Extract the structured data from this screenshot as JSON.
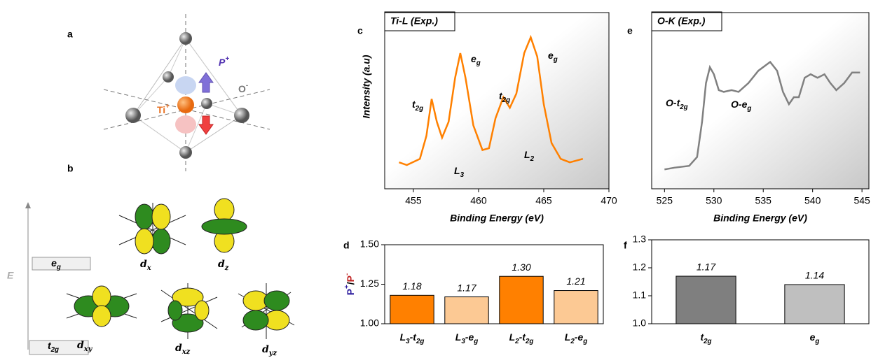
{
  "figure": {
    "panel_labels": [
      "a",
      "b",
      "c",
      "d",
      "e",
      "f"
    ],
    "polarization": "P+",
    "oxygen": "O-",
    "titanium": "Ti+",
    "energy_axis": "E",
    "eg_level": "eg",
    "t2g_level": "t2g",
    "orbitals": [
      "dx2-y2",
      "dz2",
      "dxy",
      "dxz",
      "dyz"
    ]
  },
  "chart_data": [
    {
      "type": "line",
      "box_label": "Ti-L (Exp.)",
      "xlabel": "Binding Energy (eV)",
      "ylabel": "Intensity (a.u)",
      "annotations": [
        "t2g",
        "eg",
        "t2g",
        "eg",
        "L3",
        "L2"
      ],
      "x": [
        453.9,
        454.5,
        455.5,
        456.0,
        456.4,
        456.8,
        457.2,
        457.7,
        458.2,
        458.6,
        459.0,
        459.6,
        460.3,
        460.8,
        461.3,
        461.9,
        462.4,
        462.9,
        463.5,
        464.0,
        464.5,
        465.0,
        465.6,
        466.3,
        467.0,
        468.0
      ],
      "series": [
        {
          "color": "#ff8000",
          "values": [
            0.15,
            0.135,
            0.17,
            0.3,
            0.51,
            0.38,
            0.29,
            0.38,
            0.63,
            0.77,
            0.63,
            0.36,
            0.22,
            0.23,
            0.4,
            0.52,
            0.46,
            0.54,
            0.77,
            0.86,
            0.75,
            0.48,
            0.26,
            0.17,
            0.15,
            0.17
          ]
        }
      ],
      "xlim": [
        452.8,
        470
      ],
      "xticks": [
        455,
        460,
        465,
        470
      ],
      "ylim": [
        0,
        1
      ]
    },
    {
      "type": "line",
      "box_label": "O-K (Exp.)",
      "xlabel": "Binding Energy (eV)",
      "annotations": [
        "O-t2g",
        "O-eg"
      ],
      "x": [
        525,
        526,
        527.5,
        528.3,
        528.8,
        529.2,
        529.6,
        530,
        530.5,
        531,
        531.8,
        532.5,
        533.5,
        534.5,
        535.7,
        536.4,
        537,
        537.6,
        538.1,
        538.6,
        539.2,
        539.8,
        540.5,
        541.2,
        541.8,
        542.4,
        543.2,
        544,
        544.8
      ],
      "series": [
        {
          "color": "#808080",
          "values": [
            0.11,
            0.12,
            0.13,
            0.18,
            0.38,
            0.6,
            0.69,
            0.65,
            0.56,
            0.55,
            0.56,
            0.55,
            0.6,
            0.67,
            0.72,
            0.67,
            0.55,
            0.48,
            0.52,
            0.52,
            0.63,
            0.65,
            0.63,
            0.65,
            0.6,
            0.56,
            0.6,
            0.66,
            0.66
          ]
        }
      ],
      "xlim": [
        523.7,
        545.7
      ],
      "xticks": [
        525,
        530,
        535,
        540,
        545
      ],
      "ylim": [
        0,
        1
      ]
    },
    {
      "type": "bar",
      "ylabel": "P+/P-",
      "categories": [
        "L3-t2g",
        "L3-eg",
        "L2-t2g",
        "L2-eg"
      ],
      "values": [
        1.18,
        1.17,
        1.3,
        1.21
      ],
      "value_labels": [
        "1.18",
        "1.17",
        "1.30",
        "1.21"
      ],
      "colors": [
        "#ff8000",
        "#fcc994",
        "#ff8000",
        "#fcc994"
      ],
      "ylim": [
        1.0,
        1.5
      ],
      "yticks": [
        {
          "value": 1.0,
          "label": "1.00"
        },
        {
          "value": 1.25,
          "label": "1.25"
        },
        {
          "value": 1.5,
          "label": "1.50"
        }
      ]
    },
    {
      "type": "bar",
      "categories": [
        "t2g",
        "eg"
      ],
      "values": [
        1.17,
        1.14
      ],
      "value_labels": [
        "1.17",
        "1.14"
      ],
      "colors": [
        "#7f7f7f",
        "#bfbfbf"
      ],
      "ylim": [
        1.0,
        1.3
      ],
      "yticks": [
        {
          "value": 1.0,
          "label": "1.0"
        },
        1.1,
        1.2,
        1.3
      ]
    }
  ]
}
